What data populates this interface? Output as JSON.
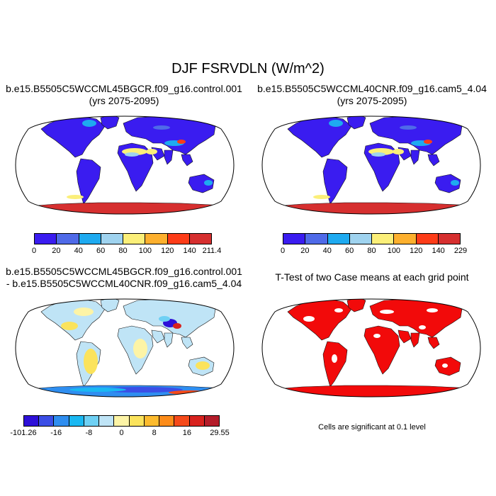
{
  "title": "DJF FSRVDLN (W/m^2)",
  "panels": {
    "top_left": {
      "title_line1": "b.e15.B5505C5WCCML45BGCR.f09_g16.control.001",
      "title_line2": "(yrs 2075-2095)",
      "colorbar": {
        "colors": [
          "#3a1cf0",
          "#4f6ae8",
          "#1eaaf0",
          "#9fd3ef",
          "#fbef79",
          "#fdb02e",
          "#fd3c18",
          "#d62f2f"
        ],
        "labels": [
          "0",
          "20",
          "40",
          "60",
          "80",
          "100",
          "120",
          "140",
          "211.4"
        ]
      }
    },
    "top_right": {
      "title_line1": "b.e15.B5505C5WCCML40CNR.f09_g16.cam5_4.04",
      "title_line2": "(yrs 2075-2095)",
      "colorbar": {
        "colors": [
          "#3a1cf0",
          "#4f6ae8",
          "#1eaaf0",
          "#9fd3ef",
          "#fbef79",
          "#fdb02e",
          "#fd3c18",
          "#d62f2f"
        ],
        "labels": [
          "0",
          "20",
          "40",
          "60",
          "80",
          "100",
          "120",
          "140",
          "229"
        ]
      }
    },
    "bottom_left": {
      "title_line1": "b.e15.B5505C5WCCML45BGCR.f09_g16.control.001",
      "title_line2": "- b.e15.B5505C5WCCML40CNR.f09_g16.cam5_4.04",
      "colorbar": {
        "colors": [
          "#2e10d8",
          "#3b4ee6",
          "#2f8ef0",
          "#1ab8f2",
          "#6ed0f4",
          "#bfe4f6",
          "#fdf4a6",
          "#fbe35c",
          "#fdbb2e",
          "#fd8c1a",
          "#f54a1a",
          "#d8221e",
          "#b41c2a"
        ],
        "labels": [
          "-101.26",
          "-16",
          "-8",
          "0",
          "8",
          "16",
          "29.55"
        ]
      }
    },
    "bottom_right": {
      "title": "T-Test of two Case means at each grid point",
      "note": "Cells are significant at 0.1 level",
      "sig_color": "#f20a0a"
    }
  }
}
